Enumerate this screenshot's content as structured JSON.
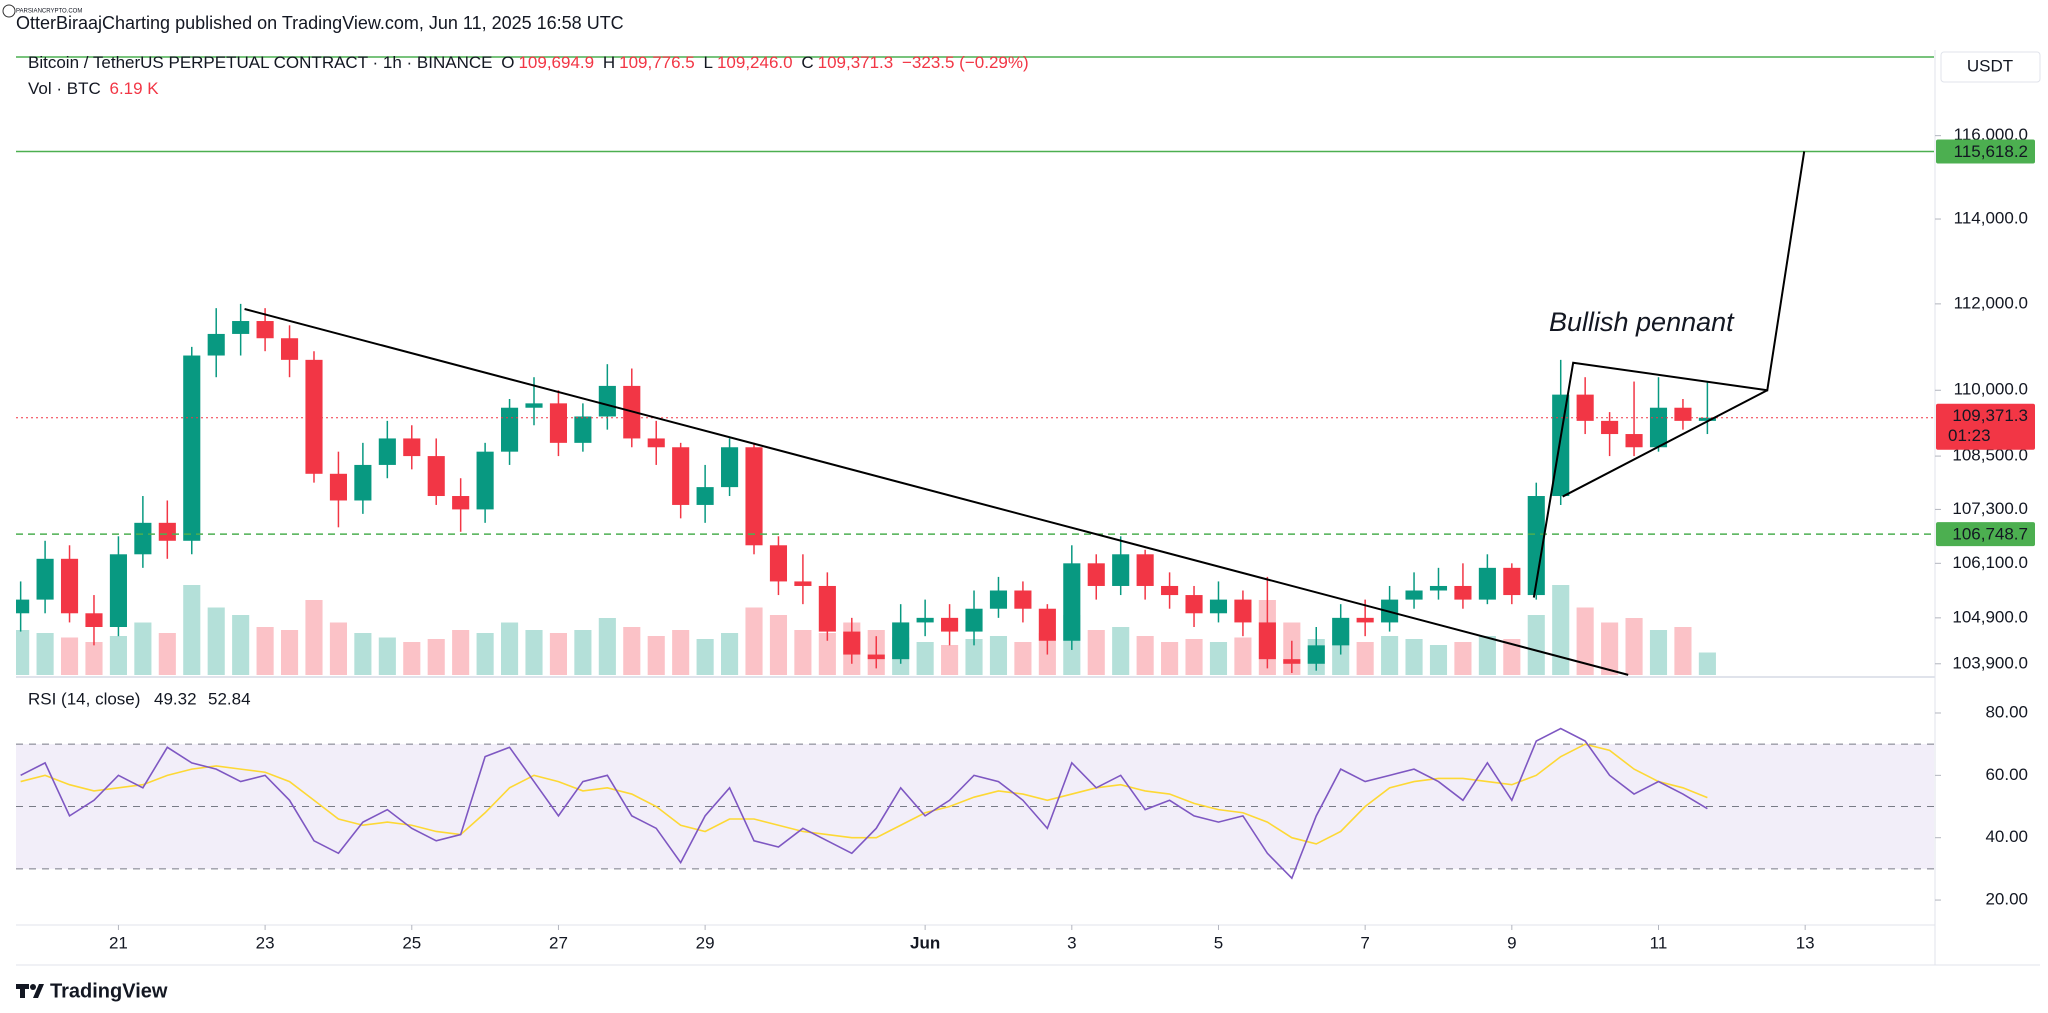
{
  "header": {
    "watermark": "PARSIANCRYPTO.COM",
    "published": "OtterBiraajCharting published on TradingView.com, Jun 11, 2025 16:58 UTC",
    "symbol": "Bitcoin / TetherUS PERPETUAL CONTRACT · 1h · BINANCE",
    "o_label": "O",
    "o": "109,694.9",
    "h_label": "H",
    "h": "109,776.5",
    "l_label": "L",
    "l": "109,246.0",
    "c_label": "C",
    "c": "109,371.3",
    "change": "−323.5 (−0.29%)",
    "vol_label": "Vol · BTC",
    "vol": "6.19 K",
    "currency": "USDT",
    "footer": "TradingView"
  },
  "chart_data": [
    {
      "type": "candlestick",
      "log": true,
      "grid": false,
      "up_color": "#089981",
      "down_color": "#f23645",
      "xlim": [
        -0.19,
        78.27
      ],
      "ylim": [
        103657,
        118017
      ],
      "yticks": [
        {
          "value": 116000,
          "label": "116,000.0"
        },
        {
          "value": 114000,
          "label": "114,000.0"
        },
        {
          "value": 112000,
          "label": "112,000.0"
        },
        {
          "value": 110000,
          "label": "110,000.0"
        },
        {
          "value": 108500,
          "label": "108,500.0"
        },
        {
          "value": 107300,
          "label": "107,300.0"
        },
        {
          "value": 106100,
          "label": "106,100.0"
        },
        {
          "value": 104900,
          "label": "104,900.0"
        },
        {
          "value": 103900,
          "label": "103,900.0"
        }
      ],
      "open": [
        105000,
        105300,
        106200,
        105000,
        104700,
        106300,
        107000,
        106600,
        110800,
        111300,
        111600,
        111200,
        110700,
        108100,
        107500,
        108300,
        108900,
        108500,
        107600,
        107300,
        108600,
        109600,
        109700,
        108800,
        109400,
        110100,
        108900,
        108700,
        107400,
        107800,
        108700,
        106500,
        105700,
        105600,
        104600,
        104100,
        104000,
        104800,
        104900,
        104600,
        105100,
        105500,
        105100,
        104400,
        106100,
        105600,
        106300,
        105600,
        105400,
        105000,
        105300,
        104800,
        104000,
        103900,
        104300,
        104900,
        104800,
        105300,
        105500,
        105600,
        105300,
        106000,
        105400,
        107600,
        109900,
        109300,
        109000,
        108700,
        109600,
        109300
      ],
      "high": [
        105700,
        106600,
        106500,
        105400,
        106700,
        107600,
        107500,
        111000,
        111900,
        112000,
        111900,
        111500,
        110900,
        108600,
        108800,
        109300,
        109200,
        108900,
        108000,
        108800,
        109800,
        110300,
        110000,
        109700,
        110600,
        110500,
        109300,
        108800,
        108300,
        108900,
        108800,
        106700,
        106300,
        105900,
        104900,
        104500,
        105200,
        105300,
        105200,
        105500,
        105800,
        105700,
        105200,
        106500,
        106300,
        106700,
        106400,
        105900,
        105600,
        105700,
        105500,
        105800,
        104400,
        104700,
        105200,
        105300,
        105600,
        105900,
        106000,
        106100,
        106300,
        106100,
        107900,
        110700,
        110300,
        109500,
        110200,
        110300,
        109800,
        110200
      ],
      "low": [
        104600,
        105000,
        104800,
        104300,
        104500,
        106000,
        106200,
        106300,
        110300,
        110800,
        110900,
        110300,
        107900,
        106900,
        107200,
        108000,
        108200,
        107400,
        106800,
        107000,
        108300,
        109200,
        108500,
        108600,
        109100,
        108700,
        108300,
        107100,
        107000,
        107600,
        106300,
        105400,
        105200,
        104400,
        103900,
        103800,
        103900,
        104500,
        104300,
        104300,
        104900,
        104800,
        104100,
        104200,
        105300,
        105400,
        105300,
        105100,
        104700,
        104800,
        104500,
        103800,
        103700,
        103750,
        104100,
        104500,
        104600,
        105100,
        105300,
        105100,
        105200,
        105200,
        105300,
        107400,
        109000,
        108500,
        108500,
        108600,
        109100,
        109000
      ],
      "close": [
        105300,
        106200,
        105000,
        104700,
        106300,
        107000,
        106600,
        110800,
        111300,
        111600,
        111200,
        110700,
        108100,
        107500,
        108300,
        108900,
        108500,
        107600,
        107300,
        108600,
        109600,
        109700,
        108800,
        109400,
        110100,
        108900,
        108700,
        107400,
        107800,
        108700,
        106500,
        105700,
        105600,
        104600,
        104100,
        104000,
        104800,
        104900,
        104600,
        105100,
        105500,
        105100,
        104400,
        106100,
        105600,
        106300,
        105600,
        105400,
        105000,
        105300,
        104800,
        104000,
        103900,
        104300,
        104900,
        104800,
        105300,
        105500,
        105600,
        105300,
        106000,
        105400,
        107600,
        109900,
        109300,
        109000,
        108700,
        109600,
        109300,
        109371.3
      ],
      "volume": [
        30,
        28,
        25,
        22,
        26,
        35,
        28,
        60,
        45,
        40,
        32,
        30,
        50,
        35,
        28,
        25,
        22,
        24,
        30,
        28,
        35,
        30,
        28,
        30,
        38,
        32,
        26,
        30,
        24,
        28,
        45,
        40,
        30,
        28,
        35,
        30,
        25,
        22,
        20,
        24,
        26,
        22,
        28,
        40,
        30,
        32,
        26,
        22,
        24,
        22,
        25,
        50,
        35,
        24,
        30,
        22,
        26,
        24,
        20,
        22,
        26,
        24,
        40,
        60,
        45,
        35,
        38,
        30,
        32,
        15
      ],
      "levels": [
        {
          "value": 117920,
          "color": "#4caf50",
          "style": "solid"
        },
        {
          "value": 115618.2,
          "label": "115,618.2",
          "color": "#4caf50",
          "style": "solid"
        },
        {
          "value": 106748.7,
          "label": "106,748.7",
          "color": "#4caf50",
          "style": "dashed"
        }
      ],
      "last_price": {
        "value": 109371.3,
        "label": "109,371.3",
        "countdown": "01:23",
        "color": "#f23645"
      },
      "drawings": [
        {
          "x": [
            9.16,
            65.76
          ],
          "y": [
            111880,
            103660
          ],
          "color": "#000000"
        },
        {
          "x": [
            61.9,
            63.51,
            71.45,
            72.96
          ],
          "y": [
            105345,
            110634,
            110000,
            115618.2
          ],
          "color": "#000000"
        },
        {
          "x": [
            63.08,
            71.45
          ],
          "y": [
            107588,
            110000
          ],
          "color": "#000000"
        }
      ],
      "annotations": [
        {
          "text": "Bullish pennant",
          "color": "#4caf50"
        }
      ]
    },
    {
      "type": "line",
      "title": "RSI (14, close)",
      "xlim": [
        -0.19,
        78.27
      ],
      "ylim": [
        12,
        90.9
      ],
      "yticks": [
        {
          "value": 80,
          "label": "80.00"
        },
        {
          "value": 60,
          "label": "60.00"
        },
        {
          "value": 40,
          "label": "40.00"
        },
        {
          "value": 20,
          "label": "20.00"
        }
      ],
      "xticks": [
        {
          "value": 4,
          "label": "21"
        },
        {
          "value": 10,
          "label": "23"
        },
        {
          "value": 16,
          "label": "25"
        },
        {
          "value": 22,
          "label": "27"
        },
        {
          "value": 28,
          "label": "29"
        },
        {
          "value": 37,
          "label": "Jun"
        },
        {
          "value": 43,
          "label": "3"
        },
        {
          "value": 49,
          "label": "5"
        },
        {
          "value": 55,
          "label": "7"
        },
        {
          "value": 61,
          "label": "9"
        },
        {
          "value": 67,
          "label": "11"
        },
        {
          "value": 73,
          "label": "13"
        }
      ],
      "band": [
        30,
        70
      ],
      "band_color": "#7e57c2",
      "levels": [
        70,
        50,
        30
      ],
      "series": [
        {
          "color": "#7e57c2",
          "values": [
            60,
            64,
            47,
            52,
            60,
            56,
            69,
            64,
            62,
            58,
            60,
            52,
            39,
            35,
            45,
            49,
            43,
            39,
            41,
            66,
            69,
            58,
            47,
            58,
            60,
            47,
            43,
            32,
            47,
            56,
            39,
            37,
            43,
            39,
            35,
            43,
            56,
            47,
            52,
            60,
            58,
            52,
            43,
            64,
            56,
            60,
            49,
            52,
            47,
            45,
            47,
            35,
            27,
            47,
            62,
            58,
            60,
            62,
            58,
            52,
            64,
            52,
            71,
            75,
            71,
            60,
            54,
            58,
            54,
            49.32
          ]
        },
        {
          "color": "#fdd835",
          "values": [
            58,
            60,
            57,
            55,
            56,
            57,
            60,
            62,
            63,
            62,
            61,
            58,
            52,
            46,
            44,
            45,
            44,
            42,
            41,
            48,
            56,
            60,
            58,
            55,
            56,
            54,
            50,
            44,
            42,
            46,
            46,
            44,
            42,
            41,
            40,
            40,
            44,
            48,
            50,
            53,
            55,
            54,
            52,
            54,
            56,
            57,
            55,
            54,
            51,
            49,
            48,
            45,
            40,
            38,
            42,
            50,
            56,
            58,
            59,
            59,
            58,
            57,
            60,
            66,
            70,
            68,
            62,
            58,
            56,
            52.84
          ]
        }
      ]
    }
  ]
}
